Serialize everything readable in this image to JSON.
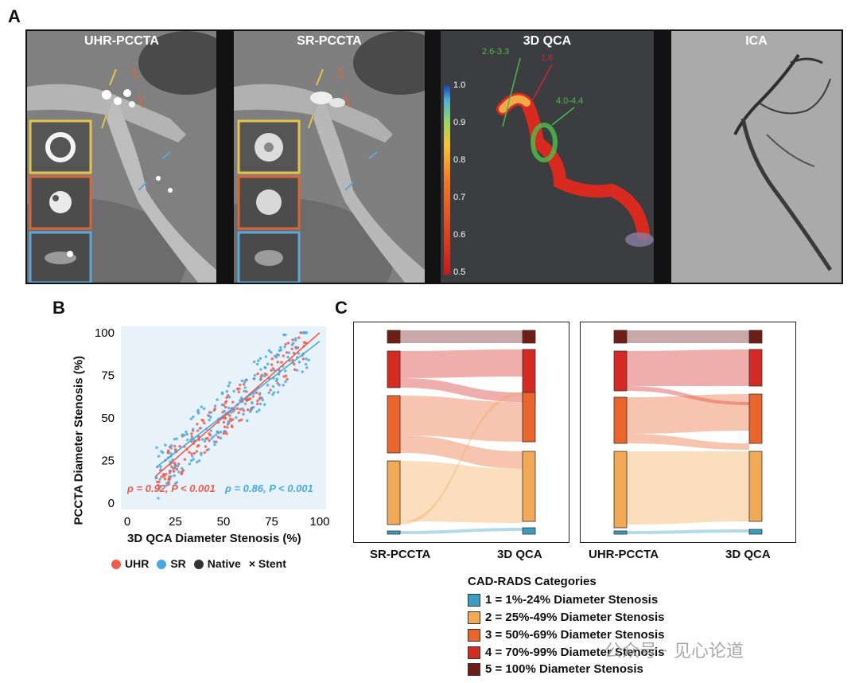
{
  "panels": {
    "a": "A",
    "b": "B",
    "c": "C"
  },
  "panel_a": {
    "tiles": [
      {
        "title": "UHR-PCCTA"
      },
      {
        "title": "SR-PCCTA"
      },
      {
        "title": "3D QCA"
      },
      {
        "title": "ICA"
      }
    ],
    "qca_labels": {
      "l1": "2.6-3.3",
      "l2": "1.6",
      "l3": "4.0-4.4"
    },
    "colorbar_ticks": [
      "1.0",
      "0.9",
      "0.8",
      "0.7",
      "0.6",
      "0.5"
    ],
    "colors": {
      "uhr_inset": "#e3c54a",
      "mid_inset": "#d9663a",
      "blue_inset": "#5aa7d8",
      "qca_bg": "#3b3d40",
      "qca_green": "#4fb84a",
      "qca_red": "#c8283a"
    }
  },
  "chart_data": [
    {
      "type": "scatter",
      "title": "",
      "xlabel": "3D QCA Diameter Stenosis (%)",
      "ylabel": "PCCTA Diameter Stenosis (%)",
      "xlim": [
        0,
        100
      ],
      "ylim": [
        0,
        100
      ],
      "xticks": [
        "0",
        "25",
        "50",
        "75",
        "100"
      ],
      "yticks": [
        "0",
        "25",
        "50",
        "75",
        "100"
      ],
      "background": "#e8f2fb",
      "series": [
        {
          "name": "UHR",
          "color": "#f05a4a",
          "fit": [
            [
              15,
              16
            ],
            [
              100,
              100
            ]
          ]
        },
        {
          "name": "SR",
          "color": "#4aa8e0",
          "fit": [
            [
              15,
              21
            ],
            [
              100,
              95
            ]
          ]
        }
      ],
      "annotations": [
        {
          "text": "ρ = 0.92, P < 0.001",
          "color": "#f05a4a"
        },
        {
          "text": "ρ = 0.86, P < 0.001",
          "color": "#4aa8e0"
        }
      ],
      "legend": [
        "UHR",
        "SR",
        "Native",
        "× Stent"
      ],
      "legend_position": "bottom"
    },
    {
      "type": "sankey",
      "left_label": "SR-PCCTA",
      "right_label": "3D QCA"
    },
    {
      "type": "sankey",
      "left_label": "UHR-PCCTA",
      "right_label": "3D QCA"
    }
  ],
  "cad_rads": {
    "title": "CAD-RADS Categories",
    "items": [
      {
        "label": "1 = 1%-24% Diameter Stenosis",
        "color": "#3a9ec0"
      },
      {
        "label": "2 = 25%-49% Diameter Stenosis",
        "color": "#f2a955"
      },
      {
        "label": "3 = 50%-69% Diameter Stenosis",
        "color": "#e9652c"
      },
      {
        "label": "4 = 70%-99% Diameter Stenosis",
        "color": "#d52a23"
      },
      {
        "label": "5 = 100% Diameter Stenosis",
        "color": "#6e1d17"
      }
    ]
  },
  "watermark": "公众号 · 见心论道"
}
